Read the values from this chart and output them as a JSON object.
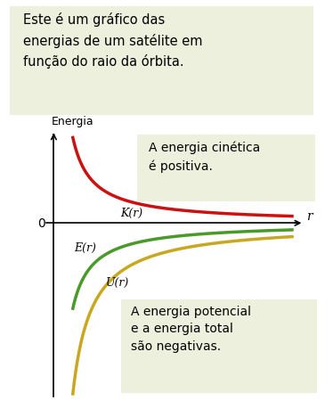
{
  "top_box_text": "Este é um gráfico das\nenergias de um satélite em\nfunção do raio da órbita.",
  "ylabel": "Energia",
  "xlabel": "r",
  "zero_label": "0",
  "curve_K_label": "K(r)",
  "curve_E_label": "E(r)",
  "curve_U_label": "U(r)",
  "color_K": "#cc1111",
  "color_E": "#4a9a2a",
  "color_U": "#c8a820",
  "box_bg": "#edf0dc",
  "box_edge": "#c8c8a0",
  "kinetic_box_text": "A energia cinética\né positiva.",
  "potential_box_text": "A energia potencial\ne a energia total\nsão negativas.",
  "r_min": 0.08,
  "r_max": 1.0,
  "figsize": [
    3.74,
    4.6
  ],
  "dpi": 100
}
